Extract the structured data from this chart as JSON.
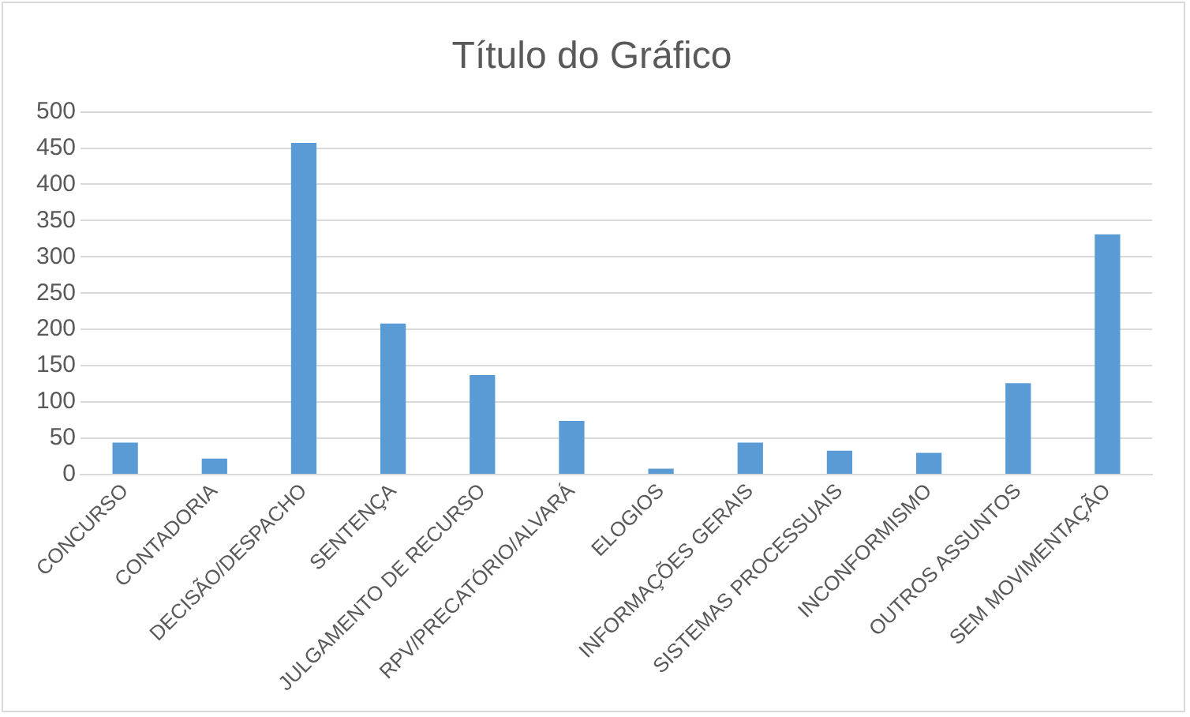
{
  "chart_data": {
    "type": "bar",
    "title": "Título do Gráfico",
    "categories": [
      "CONCURSO",
      "CONTADORIA",
      "DECISÃO/DESPACHO",
      "SENTENÇA",
      "JULGAMENTO DE RECURSO",
      "RPV/PRECATÓRIO/ALVARÁ",
      "ELOGIOS",
      "INFORMAÇÕES GERAIS",
      "SISTEMAS PROCESSUAIS",
      "INCONFORMISMO",
      "OUTROS ASSUNTOS",
      "SEM MOVIMENTAÇÃO"
    ],
    "values": [
      44,
      22,
      457,
      208,
      137,
      74,
      8,
      44,
      33,
      30,
      126,
      331
    ],
    "color": "#5b9bd5",
    "ylim": [
      0,
      500
    ],
    "yticks": [
      0,
      50,
      100,
      150,
      200,
      250,
      300,
      350,
      400,
      450,
      500
    ],
    "grid": "y"
  }
}
